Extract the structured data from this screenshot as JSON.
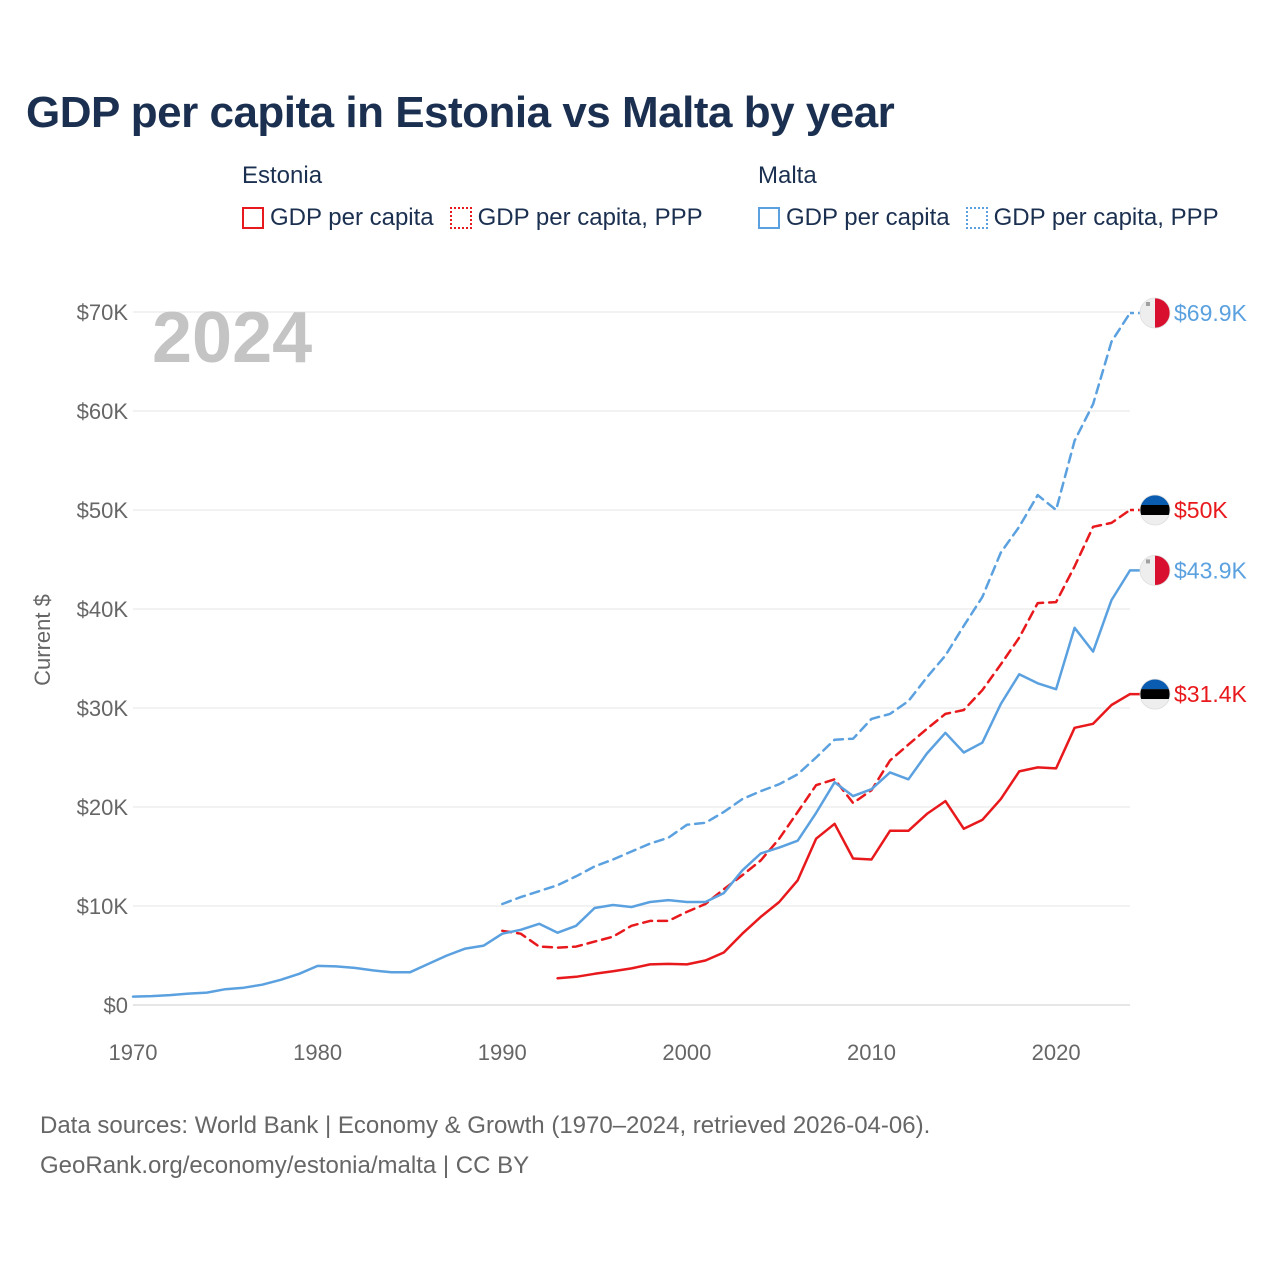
{
  "title": "GDP per capita in Estonia vs Malta by year",
  "legend": {
    "estonia": {
      "label": "Estonia",
      "gdp": "GDP per capita",
      "ppp": "GDP per capita, PPP",
      "color": "#e8191c"
    },
    "malta": {
      "label": "Malta",
      "gdp": "GDP per capita",
      "ppp": "GDP per capita, PPP",
      "color": "#5ba1e0"
    }
  },
  "year_watermark": "2024",
  "footer": {
    "line1": "Data sources: World Bank | Economy & Growth (1970–2024, retrieved 2026-04-06).",
    "line2": "GeoRank.org/economy/estonia/malta | CC BY"
  },
  "chart_data": {
    "type": "line",
    "title": "GDP per capita in Estonia vs Malta by year",
    "xlabel": "",
    "ylabel": "Current $",
    "xlim": [
      1970,
      2024
    ],
    "ylim": [
      0,
      70000
    ],
    "x_ticks": [
      1970,
      1980,
      1990,
      2000,
      2010,
      2020
    ],
    "x_tick_labels": [
      "1970",
      "1980",
      "1990",
      "2000",
      "2010",
      "2020"
    ],
    "y_ticks": [
      0,
      10000,
      20000,
      30000,
      40000,
      50000,
      60000,
      70000
    ],
    "y_tick_labels": [
      "$0",
      "$10K",
      "$20K",
      "$30K",
      "$40K",
      "$50K",
      "$60K",
      "$70K"
    ],
    "grid": true,
    "series": [
      {
        "name": "Estonia GDP per capita",
        "country": "Estonia",
        "color": "#e8191c",
        "dash": "solid",
        "flag": "estonia",
        "end_label": "$31.4K",
        "x": [
          1993,
          1994,
          1995,
          1996,
          1997,
          1998,
          1999,
          2000,
          2001,
          2002,
          2003,
          2004,
          2005,
          2006,
          2007,
          2008,
          2009,
          2010,
          2011,
          2012,
          2013,
          2014,
          2015,
          2016,
          2017,
          2018,
          2019,
          2020,
          2021,
          2022,
          2023,
          2024
        ],
        "values": [
          2700,
          2850,
          3150,
          3400,
          3700,
          4100,
          4150,
          4100,
          4500,
          5300,
          7200,
          8900,
          10400,
          12600,
          16800,
          18300,
          14800,
          14700,
          17600,
          17600,
          19300,
          20600,
          17800,
          18700,
          20800,
          23600,
          24000,
          23900,
          28000,
          28400,
          30300,
          31400
        ]
      },
      {
        "name": "Estonia GDP per capita, PPP",
        "country": "Estonia",
        "color": "#e8191c",
        "dash": "dashed",
        "flag": "estonia",
        "end_label": "$50K",
        "x": [
          1990,
          1991,
          1992,
          1993,
          1994,
          1995,
          1996,
          1997,
          1998,
          1999,
          2000,
          2001,
          2002,
          2003,
          2004,
          2005,
          2006,
          2007,
          2008,
          2009,
          2010,
          2011,
          2012,
          2013,
          2014,
          2015,
          2016,
          2017,
          2018,
          2019,
          2020,
          2021,
          2022,
          2023,
          2024
        ],
        "values": [
          7500,
          7200,
          5900,
          5800,
          5900,
          6400,
          6900,
          8000,
          8500,
          8500,
          9400,
          10200,
          11700,
          13100,
          14600,
          16800,
          19500,
          22200,
          22800,
          20400,
          21700,
          24700,
          26300,
          27900,
          29400,
          29800,
          31800,
          34400,
          37100,
          40600,
          40700,
          44300,
          48300,
          48700,
          50000
        ]
      },
      {
        "name": "Malta GDP per capita",
        "country": "Malta",
        "color": "#5ba1e0",
        "dash": "solid",
        "flag": "malta",
        "end_label": "$43.9K",
        "x": [
          1970,
          1971,
          1972,
          1973,
          1974,
          1975,
          1976,
          1977,
          1978,
          1979,
          1980,
          1981,
          1982,
          1983,
          1984,
          1985,
          1986,
          1987,
          1988,
          1989,
          1990,
          1991,
          1992,
          1993,
          1994,
          1995,
          1996,
          1997,
          1998,
          1999,
          2000,
          2001,
          2002,
          2003,
          2004,
          2005,
          2006,
          2007,
          2008,
          2009,
          2010,
          2011,
          2012,
          2013,
          2014,
          2015,
          2016,
          2017,
          2018,
          2019,
          2020,
          2021,
          2022,
          2023,
          2024
        ],
        "values": [
          850,
          900,
          1000,
          1150,
          1250,
          1600,
          1750,
          2050,
          2550,
          3150,
          3950,
          3900,
          3750,
          3500,
          3300,
          3300,
          4150,
          5000,
          5700,
          6000,
          7200,
          7600,
          8200,
          7300,
          8000,
          9800,
          10100,
          9900,
          10400,
          10600,
          10400,
          10400,
          11300,
          13600,
          15300,
          15900,
          16600,
          19400,
          22500,
          21100,
          21800,
          23500,
          22800,
          25400,
          27500,
          25500,
          26500,
          30400,
          33400,
          32500,
          31900,
          38100,
          35700,
          40900,
          43900
        ]
      },
      {
        "name": "Malta GDP per capita, PPP",
        "country": "Malta",
        "color": "#5ba1e0",
        "dash": "dotted",
        "flag": "malta",
        "end_label": "$69.9K",
        "x": [
          1990,
          1991,
          1992,
          1993,
          1994,
          1995,
          1996,
          1997,
          1998,
          1999,
          2000,
          2001,
          2002,
          2003,
          2004,
          2005,
          2006,
          2007,
          2008,
          2009,
          2010,
          2011,
          2012,
          2013,
          2014,
          2015,
          2016,
          2017,
          2018,
          2019,
          2020,
          2021,
          2022,
          2023,
          2024
        ],
        "values": [
          10200,
          10900,
          11500,
          12100,
          13000,
          14000,
          14700,
          15500,
          16300,
          16900,
          18200,
          18400,
          19500,
          20800,
          21600,
          22300,
          23300,
          25000,
          26800,
          26900,
          28900,
          29400,
          30700,
          33100,
          35300,
          38300,
          41200,
          45700,
          48300,
          51500,
          50000,
          57000,
          60700,
          67000,
          69900
        ]
      }
    ]
  }
}
